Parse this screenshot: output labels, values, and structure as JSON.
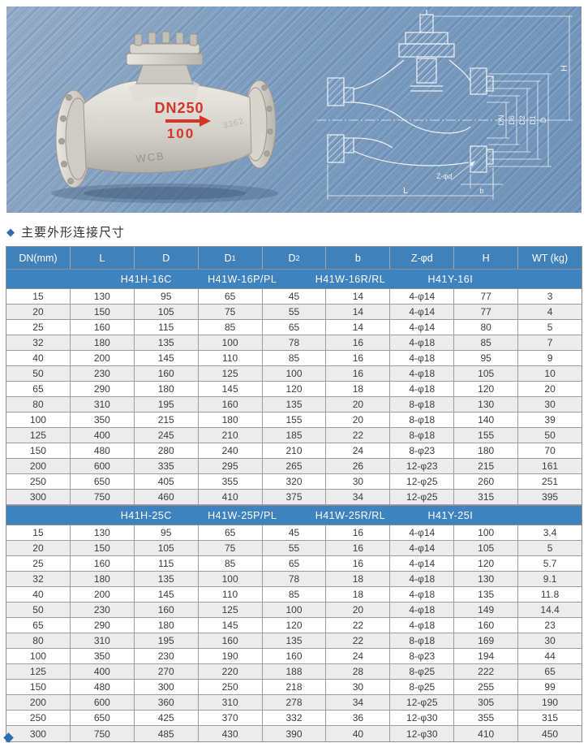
{
  "section": {
    "bullet": "◆",
    "title": "主要外形连接尺寸"
  },
  "banner": {
    "photo": {
      "mark_dn": "DN250",
      "mark_pressure": "100",
      "mark_material": "WCB",
      "mark_cast": "3362"
    },
    "drawing_labels": {
      "h": "H",
      "d": "D",
      "d1": "D1",
      "d2": "D2",
      "d6": "D6",
      "dn": "DN",
      "zpd": "Z-φd",
      "b": "b",
      "l": "L"
    }
  },
  "table": {
    "columns": [
      "DN(mm)",
      "L",
      "D",
      "D1",
      "D2",
      "b",
      "Z-φd",
      "H",
      "WT (kg)"
    ],
    "groups": [
      {
        "models": [
          "H41H-16C",
          "H41W-16P/PL",
          "H41W-16R/RL",
          "H41Y-16I"
        ],
        "rows": [
          [
            "15",
            "130",
            "95",
            "65",
            "45",
            "14",
            "4-φ14",
            "77",
            "3"
          ],
          [
            "20",
            "150",
            "105",
            "75",
            "55",
            "14",
            "4-φ14",
            "77",
            "4"
          ],
          [
            "25",
            "160",
            "115",
            "85",
            "65",
            "14",
            "4-φ14",
            "80",
            "5"
          ],
          [
            "32",
            "180",
            "135",
            "100",
            "78",
            "16",
            "4-φ18",
            "85",
            "7"
          ],
          [
            "40",
            "200",
            "145",
            "110",
            "85",
            "16",
            "4-φ18",
            "95",
            "9"
          ],
          [
            "50",
            "230",
            "160",
            "125",
            "100",
            "16",
            "4-φ18",
            "105",
            "10"
          ],
          [
            "65",
            "290",
            "180",
            "145",
            "120",
            "18",
            "4-φ18",
            "120",
            "20"
          ],
          [
            "80",
            "310",
            "195",
            "160",
            "135",
            "20",
            "8-φ18",
            "130",
            "30"
          ],
          [
            "100",
            "350",
            "215",
            "180",
            "155",
            "20",
            "8-φ18",
            "140",
            "39"
          ],
          [
            "125",
            "400",
            "245",
            "210",
            "185",
            "22",
            "8-φ18",
            "155",
            "50"
          ],
          [
            "150",
            "480",
            "280",
            "240",
            "210",
            "24",
            "8-φ23",
            "180",
            "70"
          ],
          [
            "200",
            "600",
            "335",
            "295",
            "265",
            "26",
            "12-φ23",
            "215",
            "161"
          ],
          [
            "250",
            "650",
            "405",
            "355",
            "320",
            "30",
            "12-φ25",
            "260",
            "251"
          ],
          [
            "300",
            "750",
            "460",
            "410",
            "375",
            "34",
            "12-φ25",
            "315",
            "395"
          ]
        ]
      },
      {
        "models": [
          "H41H-25C",
          "H41W-25P/PL",
          "H41W-25R/RL",
          "H41Y-25I"
        ],
        "rows": [
          [
            "15",
            "130",
            "95",
            "65",
            "45",
            "16",
            "4-φ14",
            "100",
            "3.4"
          ],
          [
            "20",
            "150",
            "105",
            "75",
            "55",
            "16",
            "4-φ14",
            "105",
            "5"
          ],
          [
            "25",
            "160",
            "115",
            "85",
            "65",
            "16",
            "4-φ14",
            "120",
            "5.7"
          ],
          [
            "32",
            "180",
            "135",
            "100",
            "78",
            "18",
            "4-φ18",
            "130",
            "9.1"
          ],
          [
            "40",
            "200",
            "145",
            "110",
            "85",
            "18",
            "4-φ18",
            "135",
            "11.8"
          ],
          [
            "50",
            "230",
            "160",
            "125",
            "100",
            "20",
            "4-φ18",
            "149",
            "14.4"
          ],
          [
            "65",
            "290",
            "180",
            "145",
            "120",
            "22",
            "4-φ18",
            "160",
            "23"
          ],
          [
            "80",
            "310",
            "195",
            "160",
            "135",
            "22",
            "8-φ18",
            "169",
            "30"
          ],
          [
            "100",
            "350",
            "230",
            "190",
            "160",
            "24",
            "8-φ23",
            "194",
            "44"
          ],
          [
            "125",
            "400",
            "270",
            "220",
            "188",
            "28",
            "8-φ25",
            "222",
            "65"
          ],
          [
            "150",
            "480",
            "300",
            "250",
            "218",
            "30",
            "8-φ25",
            "255",
            "99"
          ],
          [
            "200",
            "600",
            "360",
            "310",
            "278",
            "34",
            "12-φ25",
            "305",
            "190"
          ],
          [
            "250",
            "650",
            "425",
            "370",
            "332",
            "36",
            "12-φ30",
            "355",
            "315"
          ],
          [
            "300",
            "750",
            "485",
            "430",
            "390",
            "40",
            "12-φ30",
            "410",
            "450"
          ]
        ]
      }
    ]
  },
  "colors": {
    "header_blue": "#4181b9",
    "subheader_blue": "#3e82c0",
    "row_alt": "#ececec",
    "banner_blue": "#7b9cbf",
    "accent_red": "#d63426",
    "bullet_blue": "#2e6db4"
  }
}
